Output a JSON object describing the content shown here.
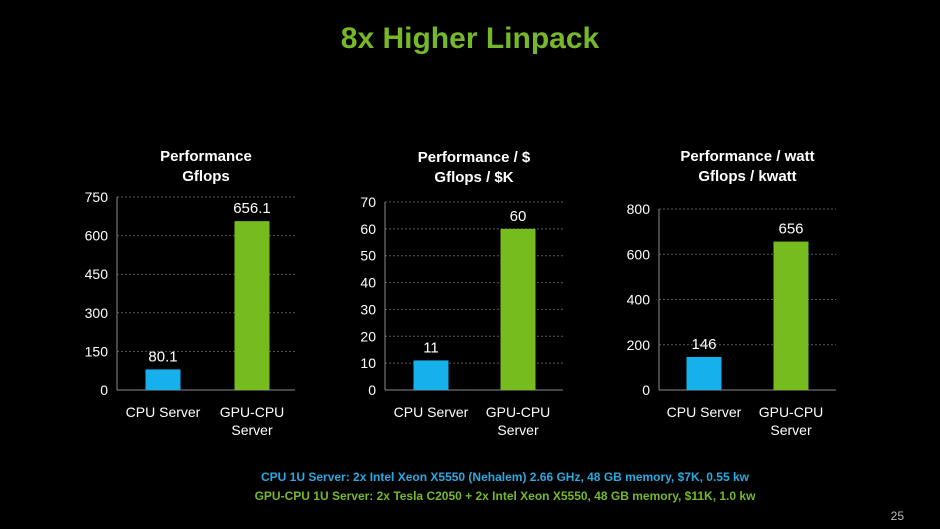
{
  "slide": {
    "title": "8x Higher Linpack",
    "footnote_cpu": "CPU 1U Server: 2x Intel Xeon X5550 (Nehalem) 2.66 GHz, 48 GB memory, $7K, 0.55 kw",
    "footnote_gpu": "GPU-CPU 1U Server: 2x Tesla C2050 + 2x Intel Xeon X5550, 48 GB memory, $11K, 1.0 kw",
    "page_number": "25"
  },
  "colors": {
    "cpu": "#16b0ec",
    "gpu": "#77bc1f",
    "title": "#76b82a"
  },
  "chart_data": [
    {
      "type": "bar",
      "title": [
        "Performance",
        "Gflops"
      ],
      "categories": [
        [
          "CPU Server"
        ],
        [
          "GPU-CPU",
          "Server"
        ]
      ],
      "values": [
        80.1,
        656.1
      ],
      "value_labels": [
        "80.1",
        "656.1"
      ],
      "ylim": [
        0,
        750
      ],
      "yticks": [
        0,
        150,
        300,
        450,
        600,
        750
      ],
      "grid": true
    },
    {
      "type": "bar",
      "title": [
        "Performance  / $",
        "Gflops / $K"
      ],
      "categories": [
        [
          "CPU Server"
        ],
        [
          "GPU-CPU",
          "Server"
        ]
      ],
      "values": [
        11,
        60
      ],
      "value_labels": [
        "11",
        "60"
      ],
      "ylim": [
        0,
        70
      ],
      "yticks": [
        0,
        10,
        20,
        30,
        40,
        50,
        60,
        70
      ],
      "grid": true
    },
    {
      "type": "bar",
      "title": [
        "Performance  / watt",
        "Gflops / kwatt"
      ],
      "categories": [
        [
          "CPU Server"
        ],
        [
          "GPU-CPU",
          "Server"
        ]
      ],
      "values": [
        146,
        656
      ],
      "value_labels": [
        "146",
        "656"
      ],
      "ylim": [
        0,
        800
      ],
      "yticks": [
        0,
        200,
        400,
        600,
        800
      ],
      "grid": true
    }
  ]
}
